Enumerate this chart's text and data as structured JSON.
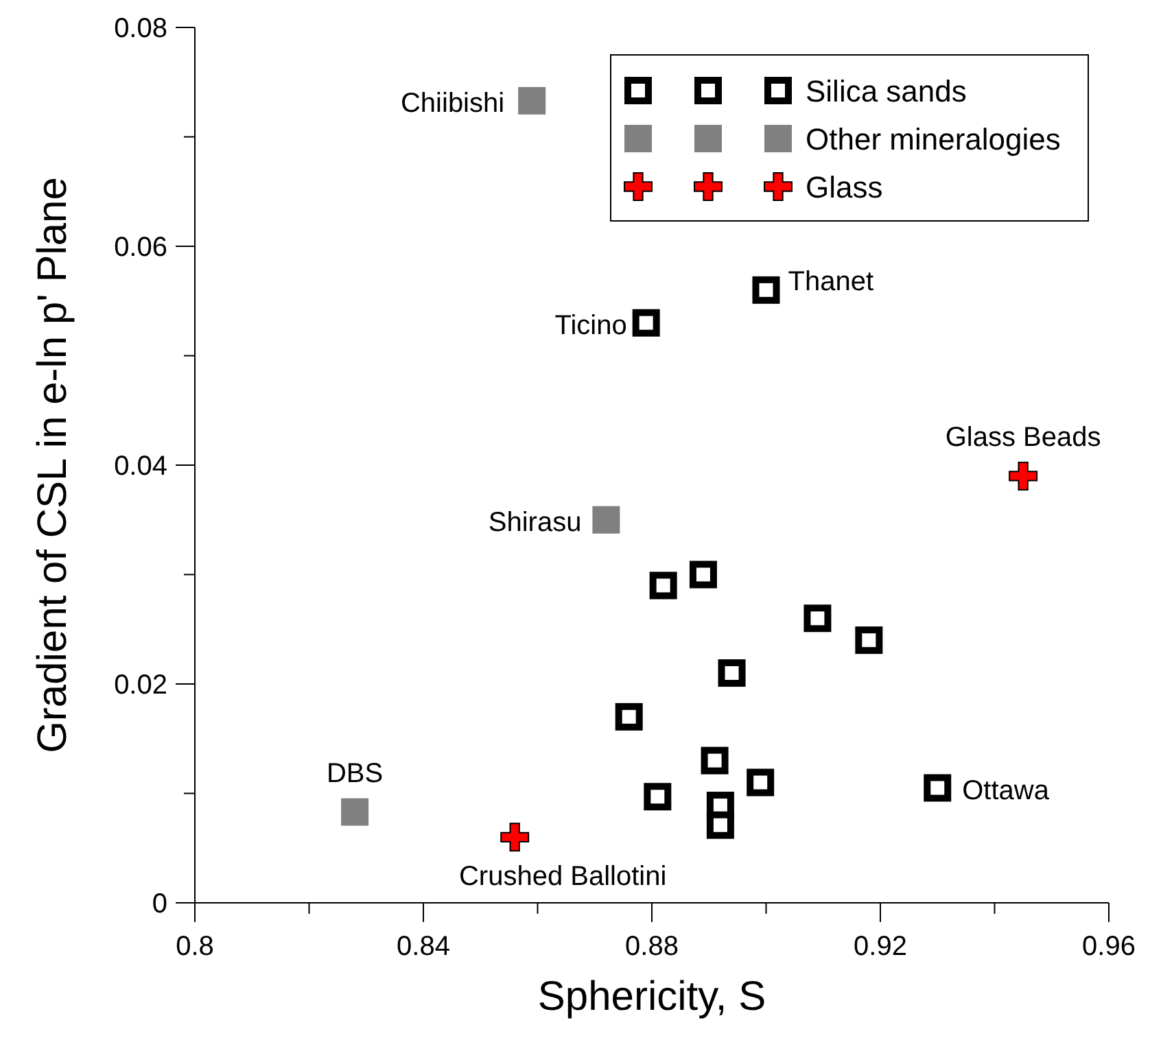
{
  "chart_data": {
    "type": "scatter",
    "xlabel": "Sphericity, S",
    "ylabel": "Gradient of CSL in e-ln p' Plane",
    "xlim": [
      0.8,
      0.96
    ],
    "xticks": [
      0.8,
      {
        "value": 0.82,
        "label": null
      },
      0.84,
      {
        "value": 0.86,
        "label": null
      },
      0.88,
      {
        "value": 0.9,
        "label": null
      },
      0.92,
      {
        "value": 0.94,
        "label": null
      },
      0.96
    ],
    "ylim": [
      0,
      0.08
    ],
    "yticks": [
      0,
      {
        "value": 0.01,
        "label": null
      },
      0.02,
      {
        "value": 0.03,
        "label": null
      },
      0.04,
      {
        "value": 0.05,
        "label": null
      },
      0.06,
      {
        "value": 0.07,
        "label": null
      },
      0.08
    ],
    "grid": false,
    "legend": "top right",
    "series": [
      {
        "name": "Silica sands",
        "color": "#000000",
        "marker": "square",
        "x": [
          0.879,
          0.9,
          0.882,
          0.889,
          0.909,
          0.918,
          0.894,
          0.876,
          0.891,
          0.899,
          0.881,
          0.892,
          0.892,
          0.93
        ],
        "values": [
          0.053,
          0.056,
          0.029,
          0.03,
          0.026,
          0.024,
          0.021,
          0.017,
          0.013,
          0.011,
          0.0097,
          0.0089,
          0.0071,
          0.0105
        ]
      },
      {
        "name": "Other mineralogies",
        "color": "#808080",
        "marker": "square",
        "x": [
          0.859,
          0.872,
          0.828
        ],
        "values": [
          0.0733,
          0.035,
          0.0083
        ]
      },
      {
        "name": "Glass",
        "color": "#ff0000",
        "marker": "cross",
        "x": [
          0.945,
          0.856
        ],
        "values": [
          0.039,
          0.006
        ]
      }
    ],
    "annotations": [
      {
        "text": "Chiibishi",
        "x": 0.859,
        "y": 0.0733
      },
      {
        "text": "Ticino",
        "x": 0.879,
        "y": 0.053
      },
      {
        "text": "Thanet",
        "x": 0.9,
        "y": 0.056
      },
      {
        "text": "Glass Beads",
        "x": 0.945,
        "y": 0.039
      },
      {
        "text": "Shirasu",
        "x": 0.872,
        "y": 0.035
      },
      {
        "text": "DBS",
        "x": 0.828,
        "y": 0.0083
      },
      {
        "text": "Crushed Ballotini",
        "x": 0.856,
        "y": 0.006
      },
      {
        "text": "Ottawa",
        "x": 0.93,
        "y": 0.0105
      }
    ]
  }
}
